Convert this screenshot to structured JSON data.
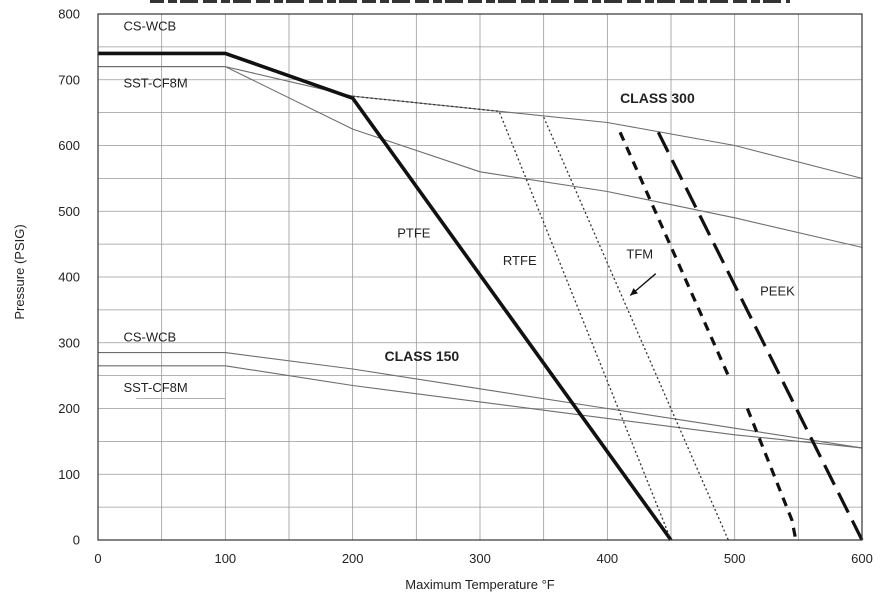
{
  "chart_data": {
    "type": "line",
    "title": "",
    "xlabel": "Maximum Temperature °F",
    "ylabel": "Pressure (PSIG)",
    "xlim": [
      0,
      600
    ],
    "ylim": [
      0,
      800
    ],
    "x_ticks": [
      "0",
      "100",
      "200",
      "300",
      "400",
      "500",
      "600"
    ],
    "y_ticks": [
      "0",
      "100",
      "200",
      "300",
      "400",
      "500",
      "600",
      "700",
      "800"
    ],
    "grid": true,
    "series": [
      {
        "name": "CS-WCB",
        "group": "CLASS 300",
        "style": "thin-solid",
        "points": [
          [
            0,
            720
          ],
          [
            100,
            720
          ],
          [
            200,
            675
          ],
          [
            300,
            655
          ],
          [
            400,
            635
          ],
          [
            500,
            600
          ],
          [
            600,
            550
          ]
        ]
      },
      {
        "name": "SST-CF8M",
        "group": "CLASS 300",
        "style": "thin-solid",
        "points": [
          [
            0,
            720
          ],
          [
            100,
            720
          ],
          [
            200,
            625
          ],
          [
            300,
            560
          ],
          [
            400,
            530
          ],
          [
            500,
            490
          ],
          [
            600,
            445
          ]
        ]
      },
      {
        "name": "CS-WCB",
        "group": "CLASS 150",
        "style": "thin-solid",
        "points": [
          [
            0,
            285
          ],
          [
            100,
            285
          ],
          [
            200,
            260
          ],
          [
            300,
            230
          ],
          [
            400,
            200
          ],
          [
            500,
            170
          ],
          [
            600,
            140
          ]
        ]
      },
      {
        "name": "SST-CF8M",
        "group": "CLASS 150",
        "style": "thin-solid",
        "points": [
          [
            0,
            265
          ],
          [
            100,
            265
          ],
          [
            200,
            235
          ],
          [
            300,
            210
          ],
          [
            400,
            185
          ],
          [
            500,
            160
          ],
          [
            600,
            140
          ]
        ]
      },
      {
        "name": "PTFE",
        "style": "thick-solid",
        "points": [
          [
            0,
            740
          ],
          [
            100,
            740
          ],
          [
            200,
            672
          ],
          [
            450,
            0
          ]
        ]
      },
      {
        "name": "RTFE",
        "style": "dotted",
        "points": [
          [
            200,
            675
          ],
          [
            315,
            652
          ],
          [
            450,
            0
          ]
        ]
      },
      {
        "name": "TFM",
        "style": "dotted",
        "points": [
          [
            350,
            643
          ],
          [
            495,
            0
          ]
        ]
      },
      {
        "name": "PEEK",
        "style": "dashed",
        "points": [
          [
            410,
            620
          ],
          [
            495,
            250
          ]
        ]
      },
      {
        "name": "PEEK",
        "style": "dashed",
        "points": [
          [
            510,
            200
          ],
          [
            545,
            30
          ],
          [
            548,
            0
          ]
        ]
      },
      {
        "name": "PEEK",
        "style": "long-dashed",
        "points": [
          [
            440,
            620
          ],
          [
            600,
            0
          ]
        ]
      }
    ],
    "annotations": [
      {
        "text": "CS-WCB",
        "x": 20,
        "y": 775
      },
      {
        "text": "SST-CF8M",
        "x": 20,
        "y": 688
      },
      {
        "text": "CLASS 300",
        "x": 410,
        "y": 665,
        "bold": true
      },
      {
        "text": "PTFE",
        "x": 235,
        "y": 460
      },
      {
        "text": "RTFE",
        "x": 318,
        "y": 418
      },
      {
        "text": "TFM",
        "x": 415,
        "y": 428
      },
      {
        "text": "PEEK",
        "x": 520,
        "y": 372
      },
      {
        "text": "CS-WCB",
        "x": 20,
        "y": 302
      },
      {
        "text": "CLASS 150",
        "x": 225,
        "y": 272,
        "bold": true
      },
      {
        "text": "SST-CF8M",
        "x": 20,
        "y": 225
      }
    ]
  }
}
